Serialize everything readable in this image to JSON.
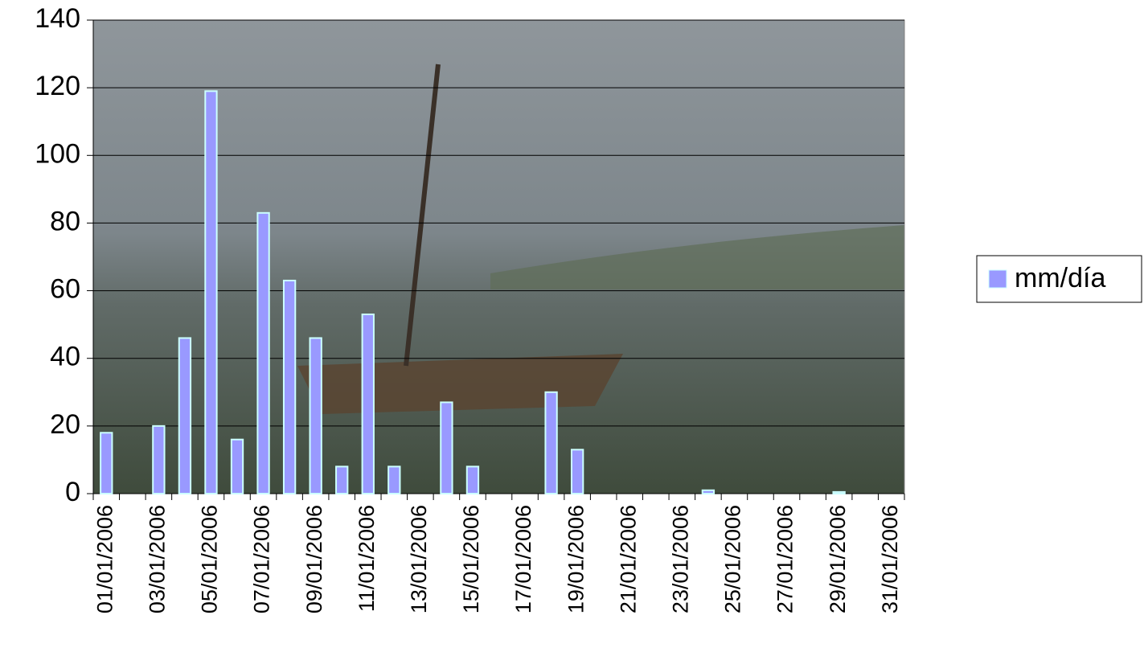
{
  "chart_data": {
    "type": "bar",
    "categories": [
      "01/01/2006",
      null,
      "03/01/2006",
      null,
      "05/01/2006",
      null,
      "07/01/2006",
      null,
      "09/01/2006",
      null,
      "11/01/2006",
      null,
      "13/01/2006",
      null,
      "15/01/2006",
      null,
      "17/01/2006",
      null,
      "19/01/2006",
      null,
      "21/01/2006",
      null,
      "23/01/2006",
      null,
      "25/01/2006",
      null,
      "27/01/2006",
      null,
      "29/01/2006",
      null,
      "31/01/2006"
    ],
    "series": [
      {
        "name": "mm/día",
        "color": "#9999ff",
        "values": [
          18,
          0,
          20,
          46,
          119,
          16,
          83,
          63,
          46,
          8,
          53,
          8,
          0,
          27,
          8,
          0,
          0,
          30,
          13,
          0,
          0,
          0,
          0,
          1,
          0,
          0,
          0,
          0,
          0.5,
          0,
          0
        ]
      }
    ],
    "ylim": [
      0,
      140
    ],
    "yticks": [
      0,
      20,
      40,
      60,
      80,
      100,
      120,
      140
    ],
    "grid": true,
    "legend": "right"
  }
}
